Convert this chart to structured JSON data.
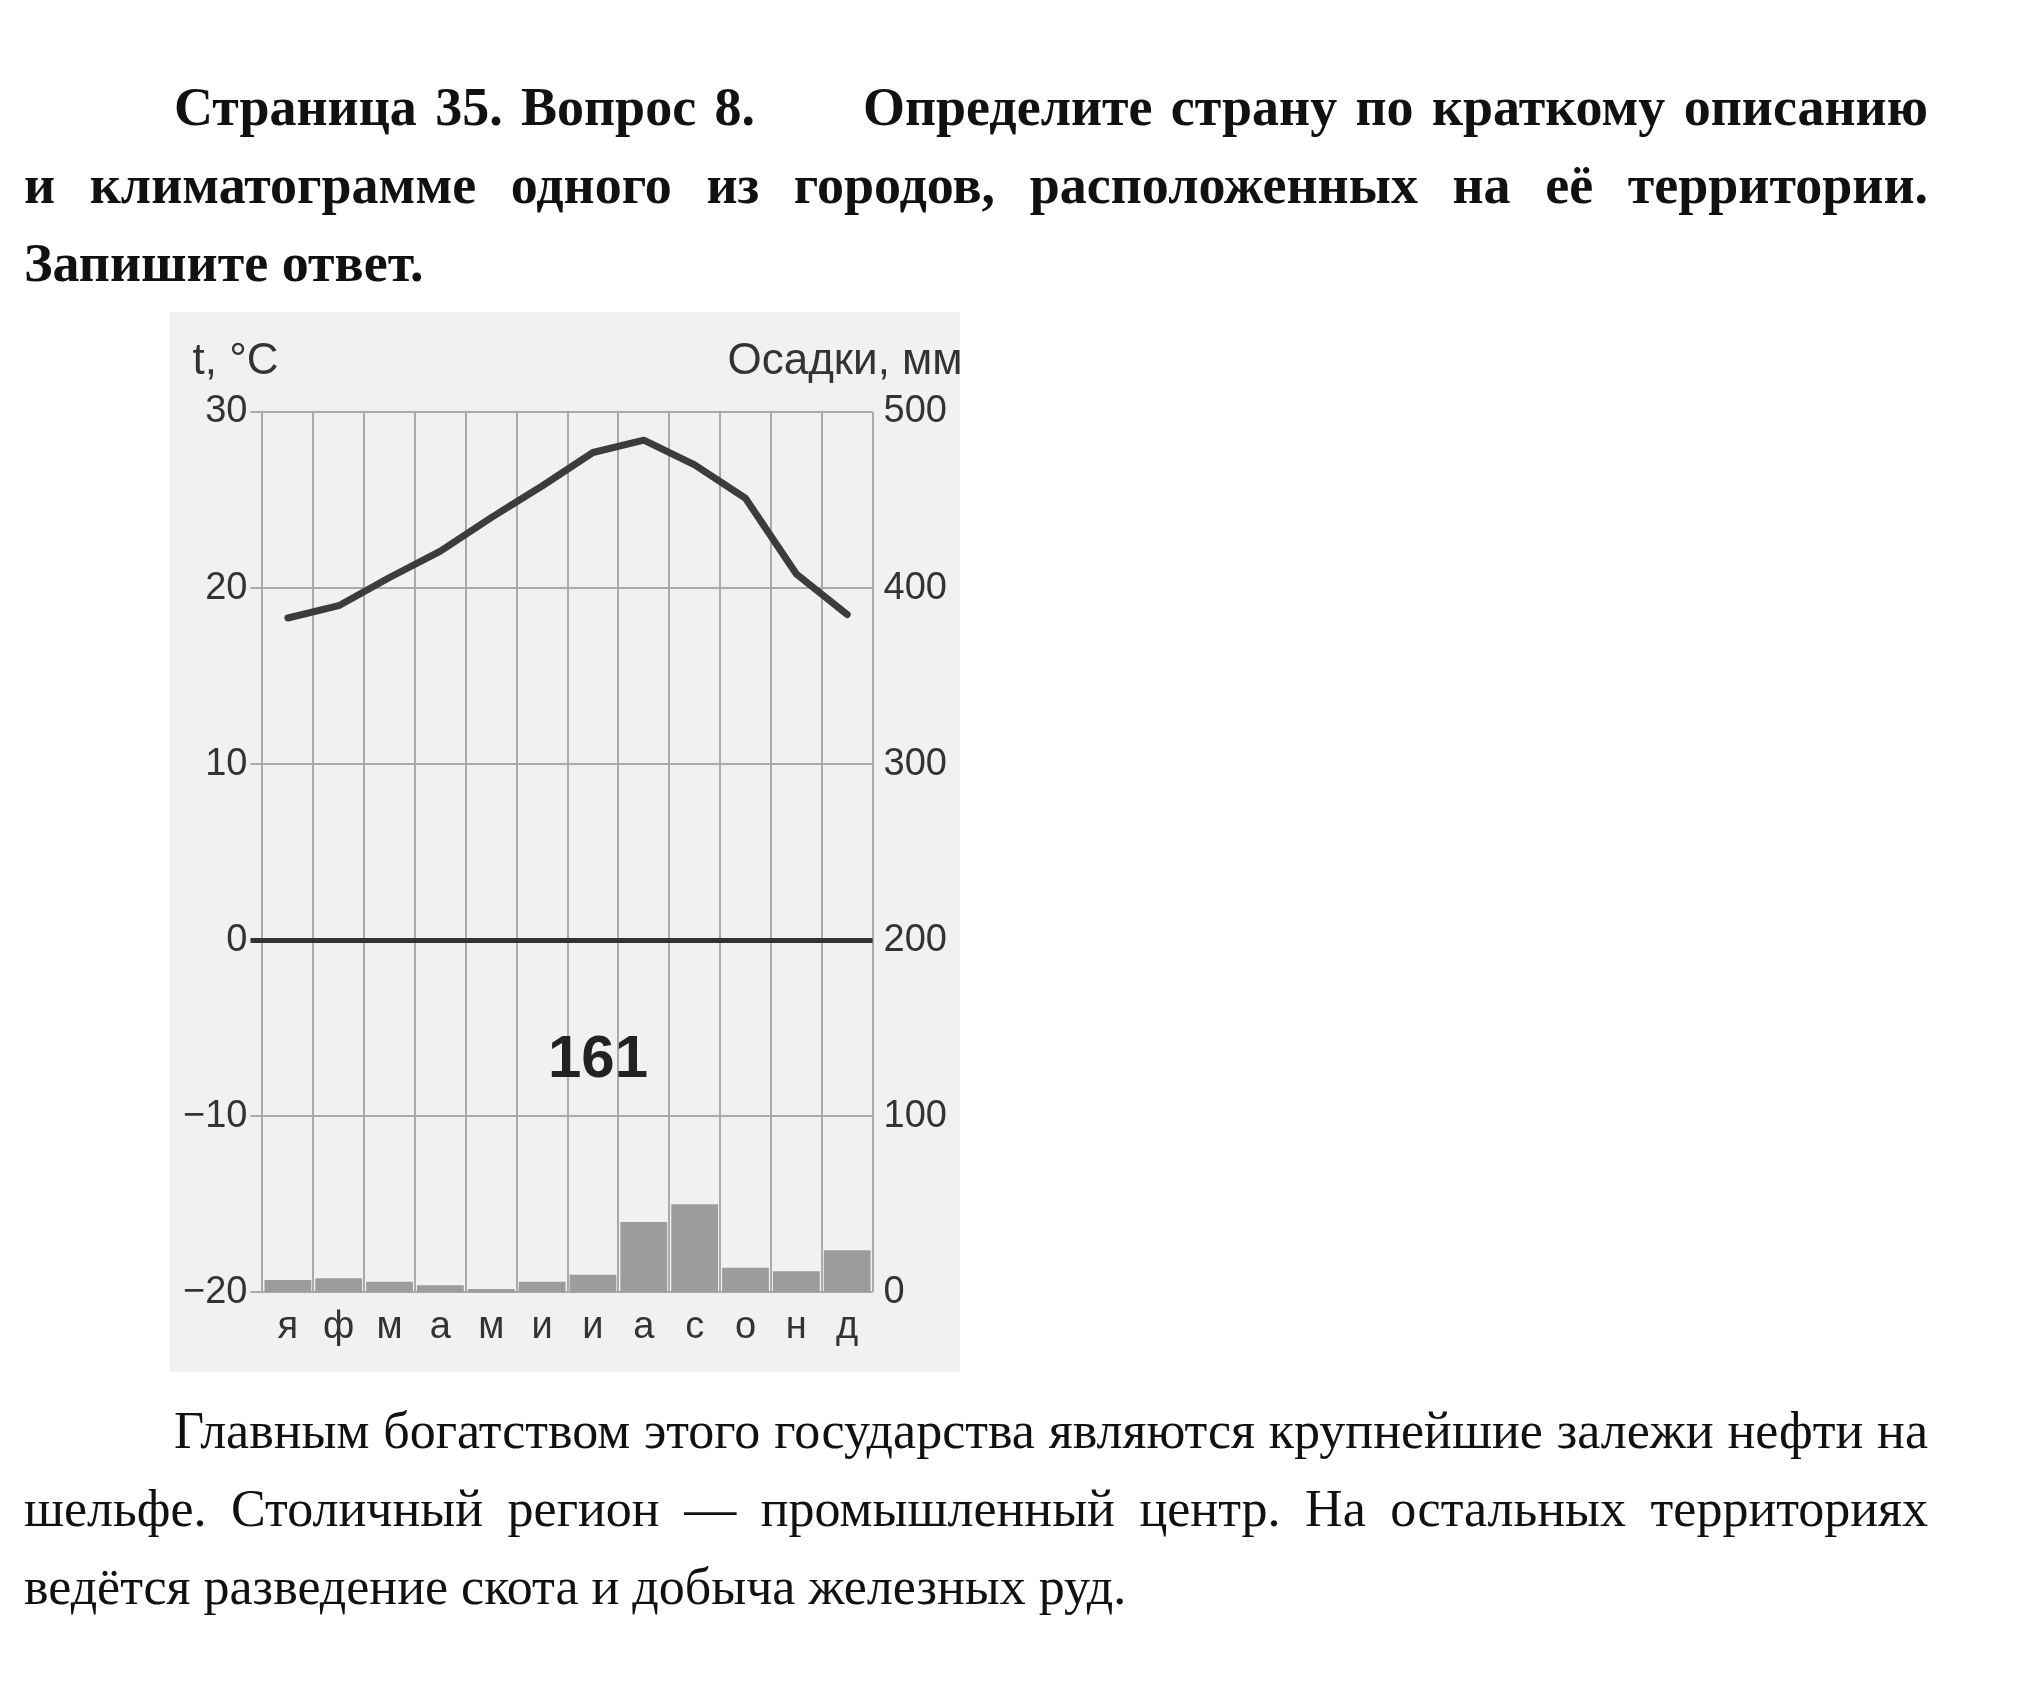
{
  "chart_data": {
    "type": "line",
    "title": "Страница 35. Вопрос 8.  Определите страну по краткому описанию и климатограмме одного из городов, расположенных на её территории. Запишите ответ.",
    "ylabel": "t, °C",
    "y2label": "Осадки, мм",
    "categories": [
      "я",
      "ф",
      "м",
      "а",
      "м",
      "и",
      "и",
      "а",
      "с",
      "о",
      "н",
      "д"
    ],
    "series": [
      {
        "type": "bar",
        "axis": "y2",
        "color": "#9c9c9c",
        "values": [
          7,
          8,
          6,
          4,
          2,
          6,
          10,
          40,
          50,
          14,
          12,
          24
        ]
      },
      {
        "axis": "y",
        "color": "#3c3c3c",
        "values": [
          18.3,
          19.0,
          20.6,
          22.1,
          24.0,
          25.8,
          27.7,
          28.4,
          27.0,
          25.1,
          20.8,
          18.5
        ]
      }
    ],
    "ylim": [
      -20,
      30
    ],
    "yticks": [
      -20,
      -10,
      0,
      10,
      20,
      30
    ],
    "y2lim": [
      0,
      500
    ],
    "y2ticks": [
      0,
      100,
      200,
      300,
      400,
      500
    ],
    "grid": true,
    "legend": false,
    "marker": "none",
    "line_style": "solid",
    "annotations": [
      "161",
      "Главным богатством этого государства являются крупнейшие залежи нефти на шельфе. Столичный регион — промышленный центр. На остальных территориях ведётся разведение скота и добыча железных руд."
    ]
  }
}
